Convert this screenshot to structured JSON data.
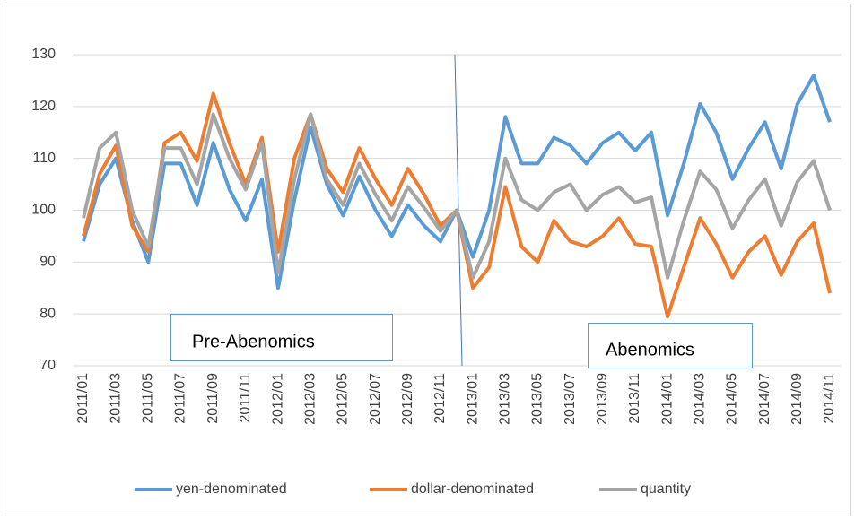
{
  "chart_data": {
    "type": "line",
    "categories": [
      "2011/01",
      null,
      "2011/03",
      null,
      "2011/05",
      null,
      "2011/07",
      null,
      "2011/09",
      null,
      "2011/11",
      null,
      "2012/01",
      null,
      "2012/03",
      null,
      "2012/05",
      null,
      "2012/07",
      null,
      "2012/09",
      null,
      "2012/11",
      null,
      "2013/01",
      null,
      "2013/03",
      null,
      "2013/05",
      null,
      "2013/07",
      null,
      "2013/09",
      null,
      "2013/11",
      null,
      "2014/01",
      null,
      "2014/03",
      null,
      "2014/05",
      null,
      "2014/07",
      null,
      "2014/09",
      null,
      "2014/11"
    ],
    "series": [
      {
        "name": "yen-denominated",
        "color": "#5b9bd5",
        "values": [
          94,
          105,
          110,
          98,
          90,
          109,
          109,
          101,
          113,
          104,
          98,
          106,
          85,
          102,
          116,
          105,
          99,
          106.5,
          100,
          95,
          101,
          97,
          94,
          100,
          91,
          100,
          118,
          109,
          109,
          114,
          112.5,
          109,
          113,
          115,
          111.5,
          115,
          99,
          109,
          120.5,
          115,
          106,
          112,
          117,
          108,
          120.5,
          126,
          117
        ]
      },
      {
        "name": "dollar-denominated",
        "color": "#ed7d31",
        "values": [
          95,
          107,
          112.5,
          97,
          92,
          113,
          115,
          109.5,
          122.5,
          113,
          105,
          114,
          92,
          110,
          118.5,
          108,
          103.5,
          112,
          106,
          101,
          108,
          103,
          97,
          100,
          85,
          89,
          104.5,
          93,
          90,
          98,
          94,
          93,
          95,
          98.5,
          93.5,
          93,
          79.5,
          89,
          98.5,
          93.5,
          87,
          92,
          95,
          87.5,
          94,
          97.5,
          84
        ]
      },
      {
        "name": "quantity",
        "color": "#a5a5a5",
        "values": [
          98.5,
          112,
          115,
          100,
          93,
          112,
          112,
          105,
          118.5,
          110,
          104,
          113,
          88,
          106,
          118.5,
          106,
          101,
          109,
          103,
          98,
          104.5,
          100.5,
          96,
          100,
          87,
          94,
          110,
          102,
          100,
          103.5,
          105,
          100,
          103,
          104.5,
          101.5,
          102.5,
          87,
          98,
          107.5,
          104,
          96.5,
          102,
          106,
          97,
          105.5,
          109.5,
          100
        ]
      }
    ],
    "ylim": [
      70,
      130
    ],
    "yticks": [
      70,
      80,
      90,
      100,
      110,
      120,
      130
    ],
    "grid": true,
    "legend": "bottom",
    "annotations": [
      "Pre-Abenomics",
      "Abenomics"
    ]
  }
}
